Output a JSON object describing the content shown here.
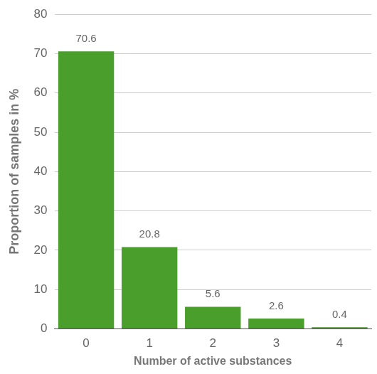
{
  "chart_data": {
    "type": "bar",
    "xlabel": "Number of active substances",
    "ylabel": "Proportion of samples in %",
    "categories": [
      "0",
      "1",
      "2",
      "3",
      "4"
    ],
    "values": [
      70.6,
      20.8,
      5.6,
      2.6,
      0.4
    ],
    "color": "#4a9e2c",
    "ylim": [
      0,
      80
    ],
    "yticks": [
      0,
      10,
      20,
      30,
      40,
      50,
      60,
      70,
      80
    ],
    "grid": true,
    "data_labels": true
  }
}
